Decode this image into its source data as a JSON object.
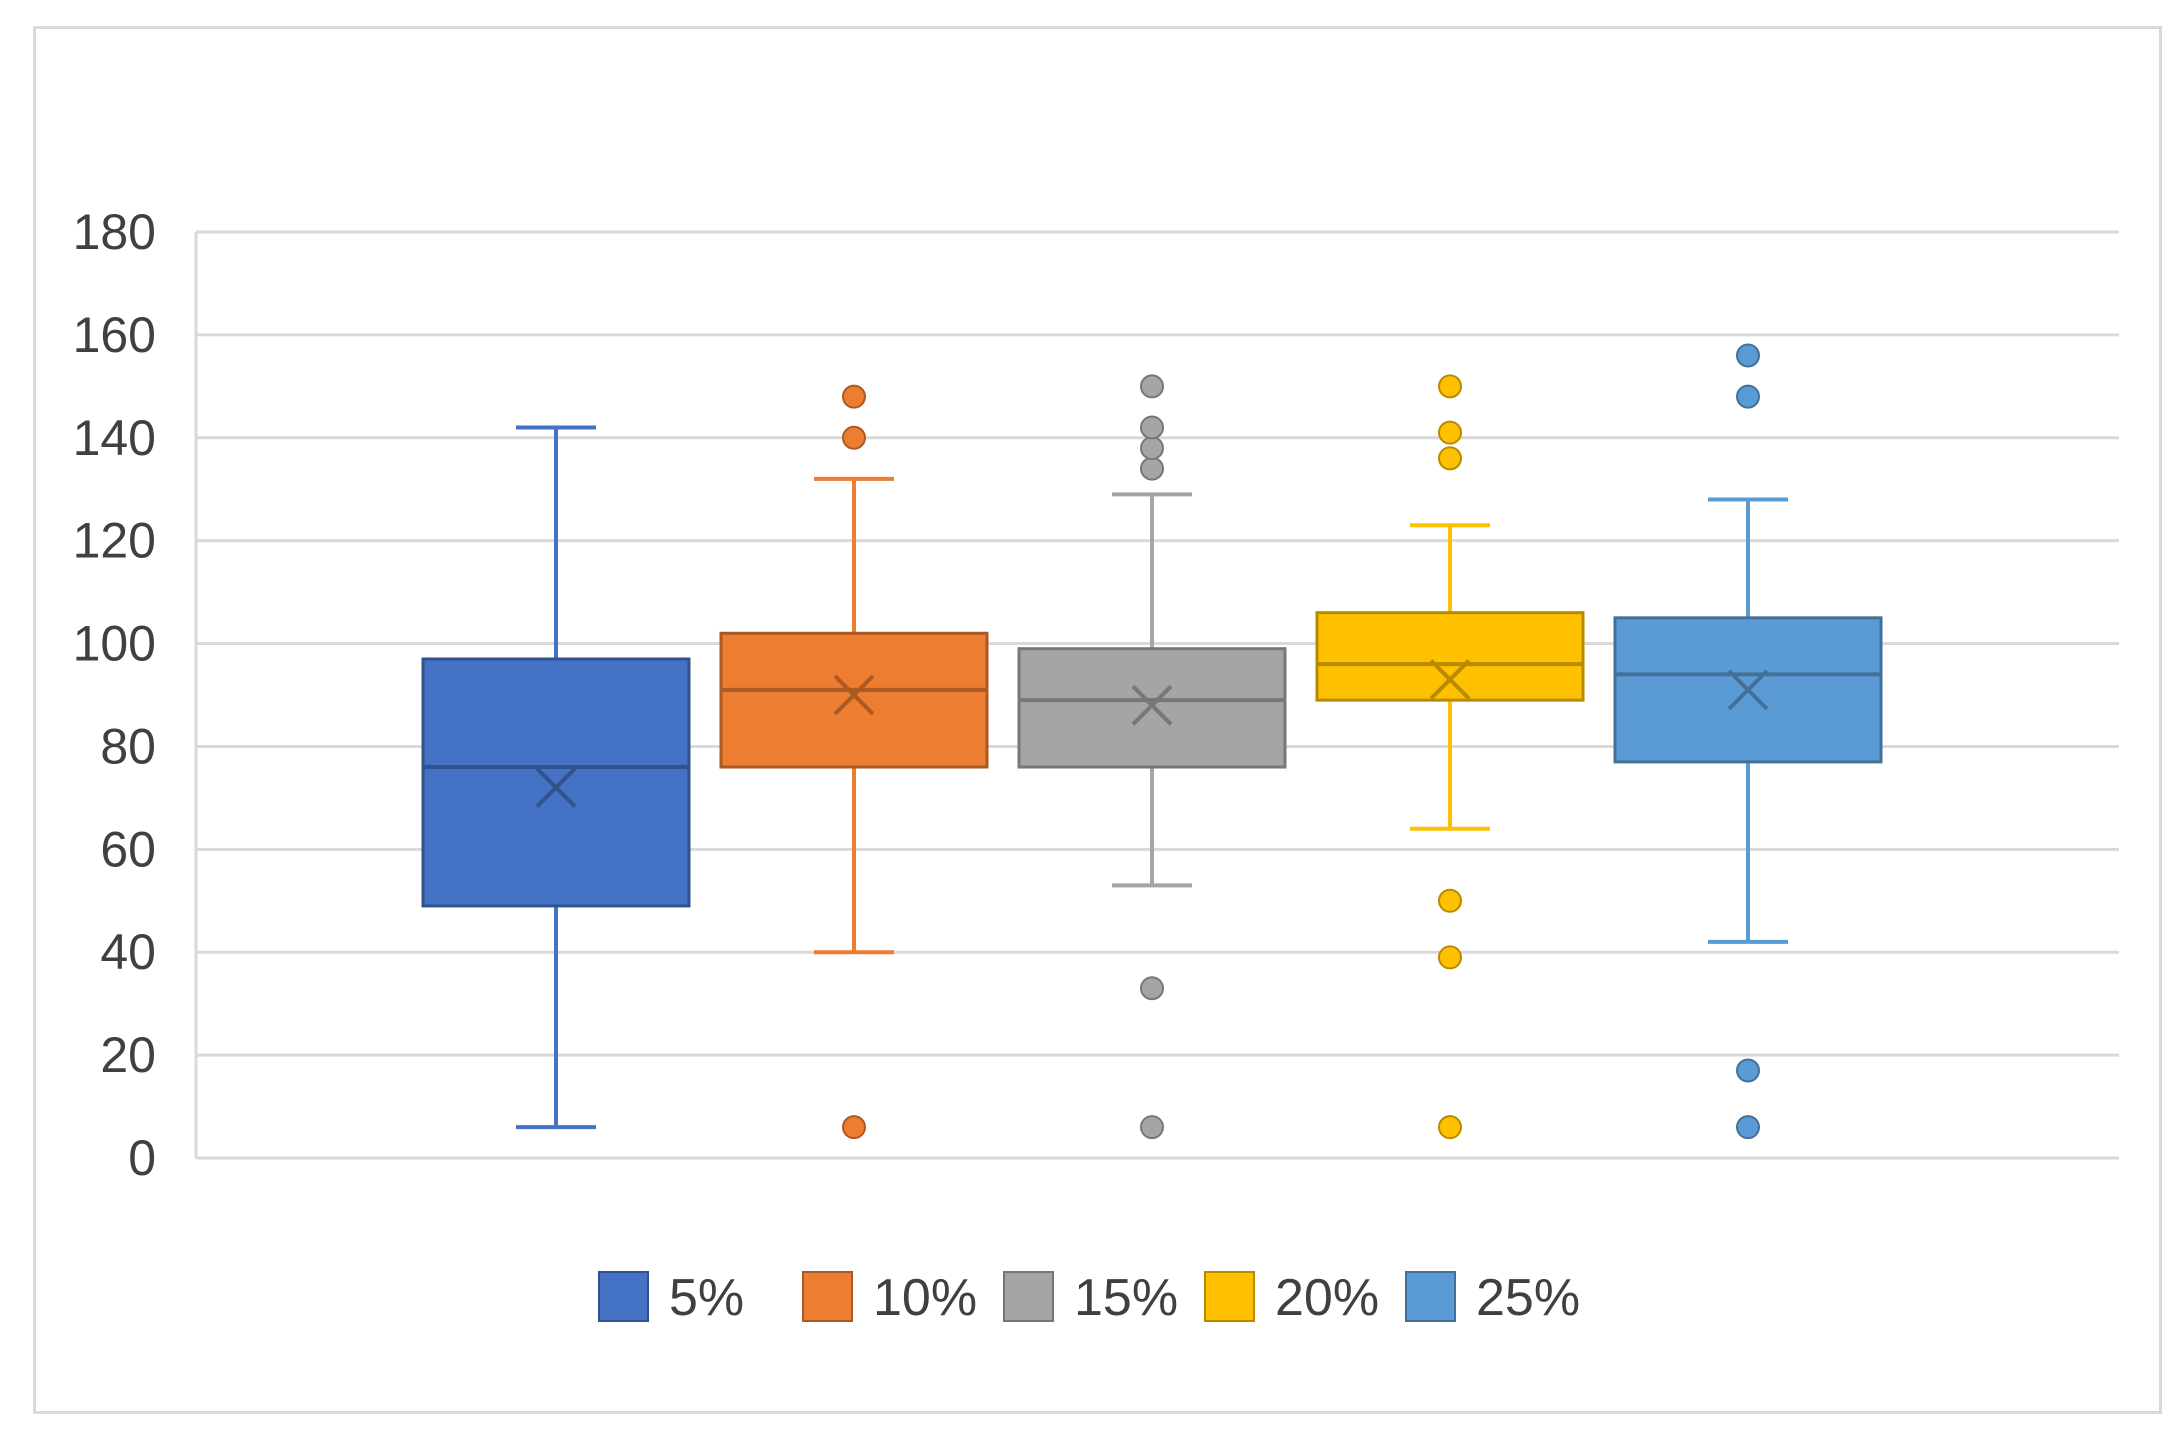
{
  "chart_data": {
    "type": "box",
    "title": "",
    "xlabel": "",
    "ylabel": "",
    "ylim": [
      0,
      180
    ],
    "yticks": [
      0,
      20,
      40,
      60,
      80,
      100,
      120,
      140,
      160,
      180
    ],
    "grid": true,
    "legend_position": "bottom",
    "series": [
      {
        "name": "5%",
        "color": "#4472C4",
        "min": 6,
        "q1": 49,
        "median": 76,
        "q3": 97,
        "max": 142,
        "mean": 72,
        "outliers": []
      },
      {
        "name": "10%",
        "color": "#ED7D31",
        "min": 40,
        "q1": 76,
        "median": 91,
        "q3": 102,
        "max": 132,
        "mean": 90,
        "outliers": [
          6,
          140,
          148
        ]
      },
      {
        "name": "15%",
        "color": "#A5A5A5",
        "min": 53,
        "q1": 76,
        "median": 89,
        "q3": 99,
        "max": 129,
        "mean": 88,
        "outliers": [
          6,
          33,
          134,
          138,
          142,
          150
        ]
      },
      {
        "name": "20%",
        "color": "#FFC000",
        "min": 64,
        "q1": 89,
        "median": 96,
        "q3": 106,
        "max": 123,
        "mean": 93,
        "outliers": [
          6,
          39,
          50,
          136,
          141,
          150
        ]
      },
      {
        "name": "25%",
        "color": "#5B9BD5",
        "min": 42,
        "q1": 77,
        "median": 94,
        "q3": 105,
        "max": 128,
        "mean": 91,
        "outliers": [
          6,
          17,
          148,
          156
        ]
      }
    ]
  }
}
